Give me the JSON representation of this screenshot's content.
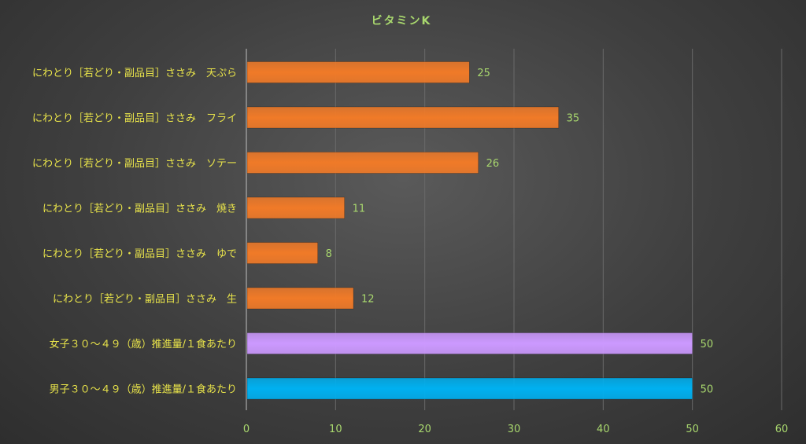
{
  "chart_data": {
    "type": "bar",
    "orientation": "horizontal",
    "title": "ビタミンK",
    "categories": [
      "にわとり［若どり・副品目］ささみ　天ぷら",
      "にわとり［若どり・副品目］ささみ　フライ",
      "にわとり［若どり・副品目］ささみ　ソテー",
      "にわとり［若どり・副品目］ささみ　焼き",
      "にわとり［若どり・副品目］ささみ　ゆで",
      "にわとり［若どり・副品目］ささみ　生",
      "女子３０～４９（歳）推進量/１食あたり",
      "男子３０～４９（歳）推進量/１食あたり"
    ],
    "values": [
      25,
      35,
      26,
      11,
      8,
      12,
      50,
      50
    ],
    "bar_colors": [
      "#f07a28",
      "#f07a28",
      "#f07a28",
      "#f07a28",
      "#f07a28",
      "#f07a28",
      "#cc99ff",
      "#00b0f0"
    ],
    "xlim": [
      0,
      60
    ],
    "x_ticks": [
      0,
      10,
      20,
      30,
      40,
      50,
      60
    ],
    "grid": true,
    "xlabel": "",
    "ylabel": ""
  }
}
